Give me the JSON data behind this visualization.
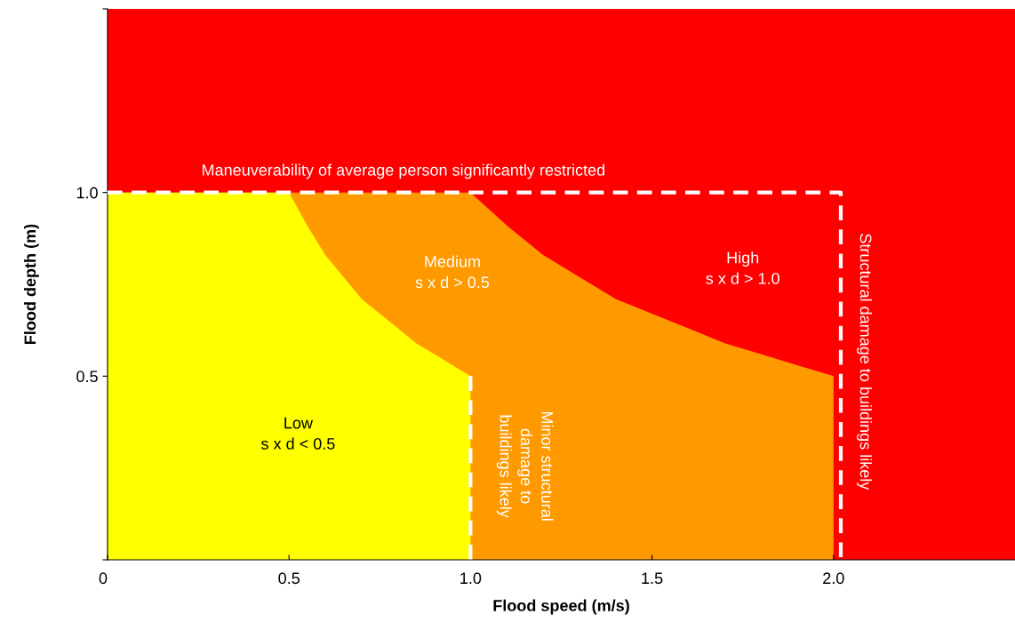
{
  "chart_data": {
    "type": "area",
    "xlabel": "Flood speed (m/s)",
    "ylabel": "Flood depth (m)",
    "xlim": [
      0,
      2.5
    ],
    "ylim": [
      0,
      1.5
    ],
    "xticks": [
      {
        "value": 0,
        "label": "0"
      },
      {
        "value": 0.5,
        "label": "0.5"
      },
      {
        "value": 1.0,
        "label": "1.0"
      },
      {
        "value": 1.5,
        "label": "1.5"
      },
      {
        "value": 2.0,
        "label": "2.0"
      }
    ],
    "yticks": [
      {
        "value": 0,
        "label": null
      },
      {
        "value": 0.5,
        "label": "0.5"
      },
      {
        "value": 1.0,
        "label": "1.0"
      },
      {
        "value": 1.5,
        "label": null
      }
    ],
    "grid": false,
    "legend": false,
    "bands": [
      {
        "axis": "y",
        "from": 0,
        "to": 1.5,
        "color": "#ff0000"
      }
    ],
    "series": [
      {
        "color": "#ff9900",
        "x": [
          0,
          1.0,
          1.1,
          1.2,
          1.3,
          1.4,
          1.5,
          1.6,
          1.7,
          1.8,
          1.9,
          2.0,
          2.0
        ],
        "values": [
          1.0,
          1.0,
          0.91,
          0.83,
          0.77,
          0.71,
          0.67,
          0.63,
          0.59,
          0.56,
          0.53,
          0.5,
          0
        ]
      },
      {
        "color": "#ffff00",
        "x": [
          0,
          0.5,
          0.55,
          0.6,
          0.65,
          0.7,
          0.75,
          0.8,
          0.85,
          0.9,
          0.95,
          1.0,
          1.0
        ],
        "values": [
          1.0,
          1.0,
          0.91,
          0.83,
          0.77,
          0.71,
          0.67,
          0.63,
          0.59,
          0.56,
          0.53,
          0.5,
          0
        ]
      },
      {
        "type": "line",
        "color": "#ffffff",
        "line_style": "dashed",
        "x": [
          0,
          2.02,
          2.02
        ],
        "values": [
          1.0,
          1.0,
          0
        ]
      },
      {
        "type": "line",
        "color": "#ffffff",
        "line_style": "dashed",
        "x": [
          1.0,
          1.0
        ],
        "values": [
          0.5,
          0
        ]
      }
    ],
    "annotations": [
      "Maneuverability of average person significantly restricted",
      "Medium\ns x d > 0.5",
      "High\ns x d > 1.0",
      "Low\ns x d < 0.5",
      "Minor structural\ndamage to\nbuildings likely",
      "Structural damage to buildings likely"
    ]
  }
}
